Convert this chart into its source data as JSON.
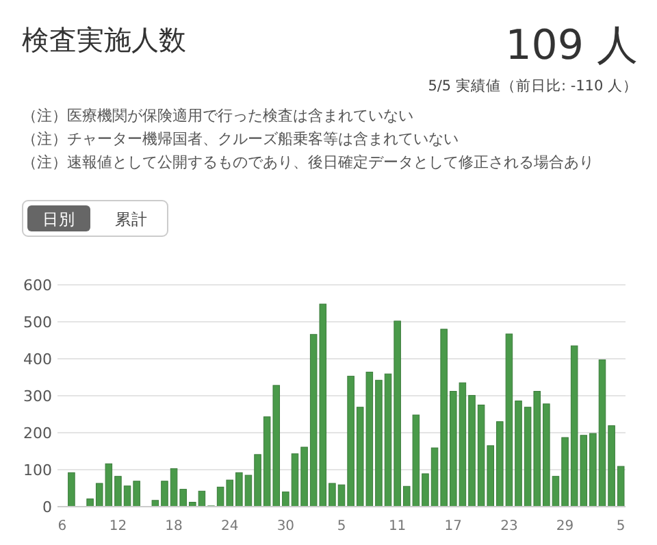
{
  "chart_data": {
    "type": "bar",
    "title": "検査実施人数",
    "subtitle": "5/5 実績値（前日比: -110 人）",
    "annotations": [
      "109 人",
      "（注）医療機関が保険適用で行った検査は含まれていない",
      "（注）チャーター機帰国者、クルーズ船乗客等は含まれていない",
      "（注）速報値として公開するものであり、後日確定データとして修正される場合あり",
      "日別",
      "累計"
    ],
    "categories": [
      "6",
      null,
      null,
      null,
      null,
      null,
      "12",
      null,
      null,
      null,
      null,
      null,
      "18",
      null,
      null,
      null,
      null,
      null,
      "24",
      null,
      null,
      null,
      null,
      null,
      "30",
      null,
      null,
      null,
      null,
      null,
      "5",
      null,
      null,
      null,
      null,
      null,
      "11",
      null,
      null,
      null,
      null,
      null,
      "17",
      null,
      null,
      null,
      null,
      null,
      "23",
      null,
      null,
      null,
      null,
      null,
      "29",
      null,
      null,
      null,
      null,
      null,
      "5"
    ],
    "values": [
      0,
      92,
      0,
      21,
      63,
      116,
      82,
      56,
      69,
      0,
      17,
      69,
      103,
      47,
      12,
      42,
      2,
      53,
      72,
      92,
      85,
      141,
      243,
      328,
      40,
      143,
      161,
      466,
      548,
      63,
      59,
      353,
      269,
      364,
      342,
      359,
      502,
      55,
      248,
      89,
      159,
      480,
      312,
      335,
      301,
      275,
      165,
      230,
      467,
      286,
      269,
      312,
      278,
      82,
      187,
      435,
      193,
      198,
      397,
      219,
      109
    ],
    "color": "#4a9a4a",
    "ylim": [
      0,
      600
    ],
    "yticks": [
      0,
      100,
      200,
      300,
      400,
      500,
      600
    ],
    "grid": "y"
  }
}
